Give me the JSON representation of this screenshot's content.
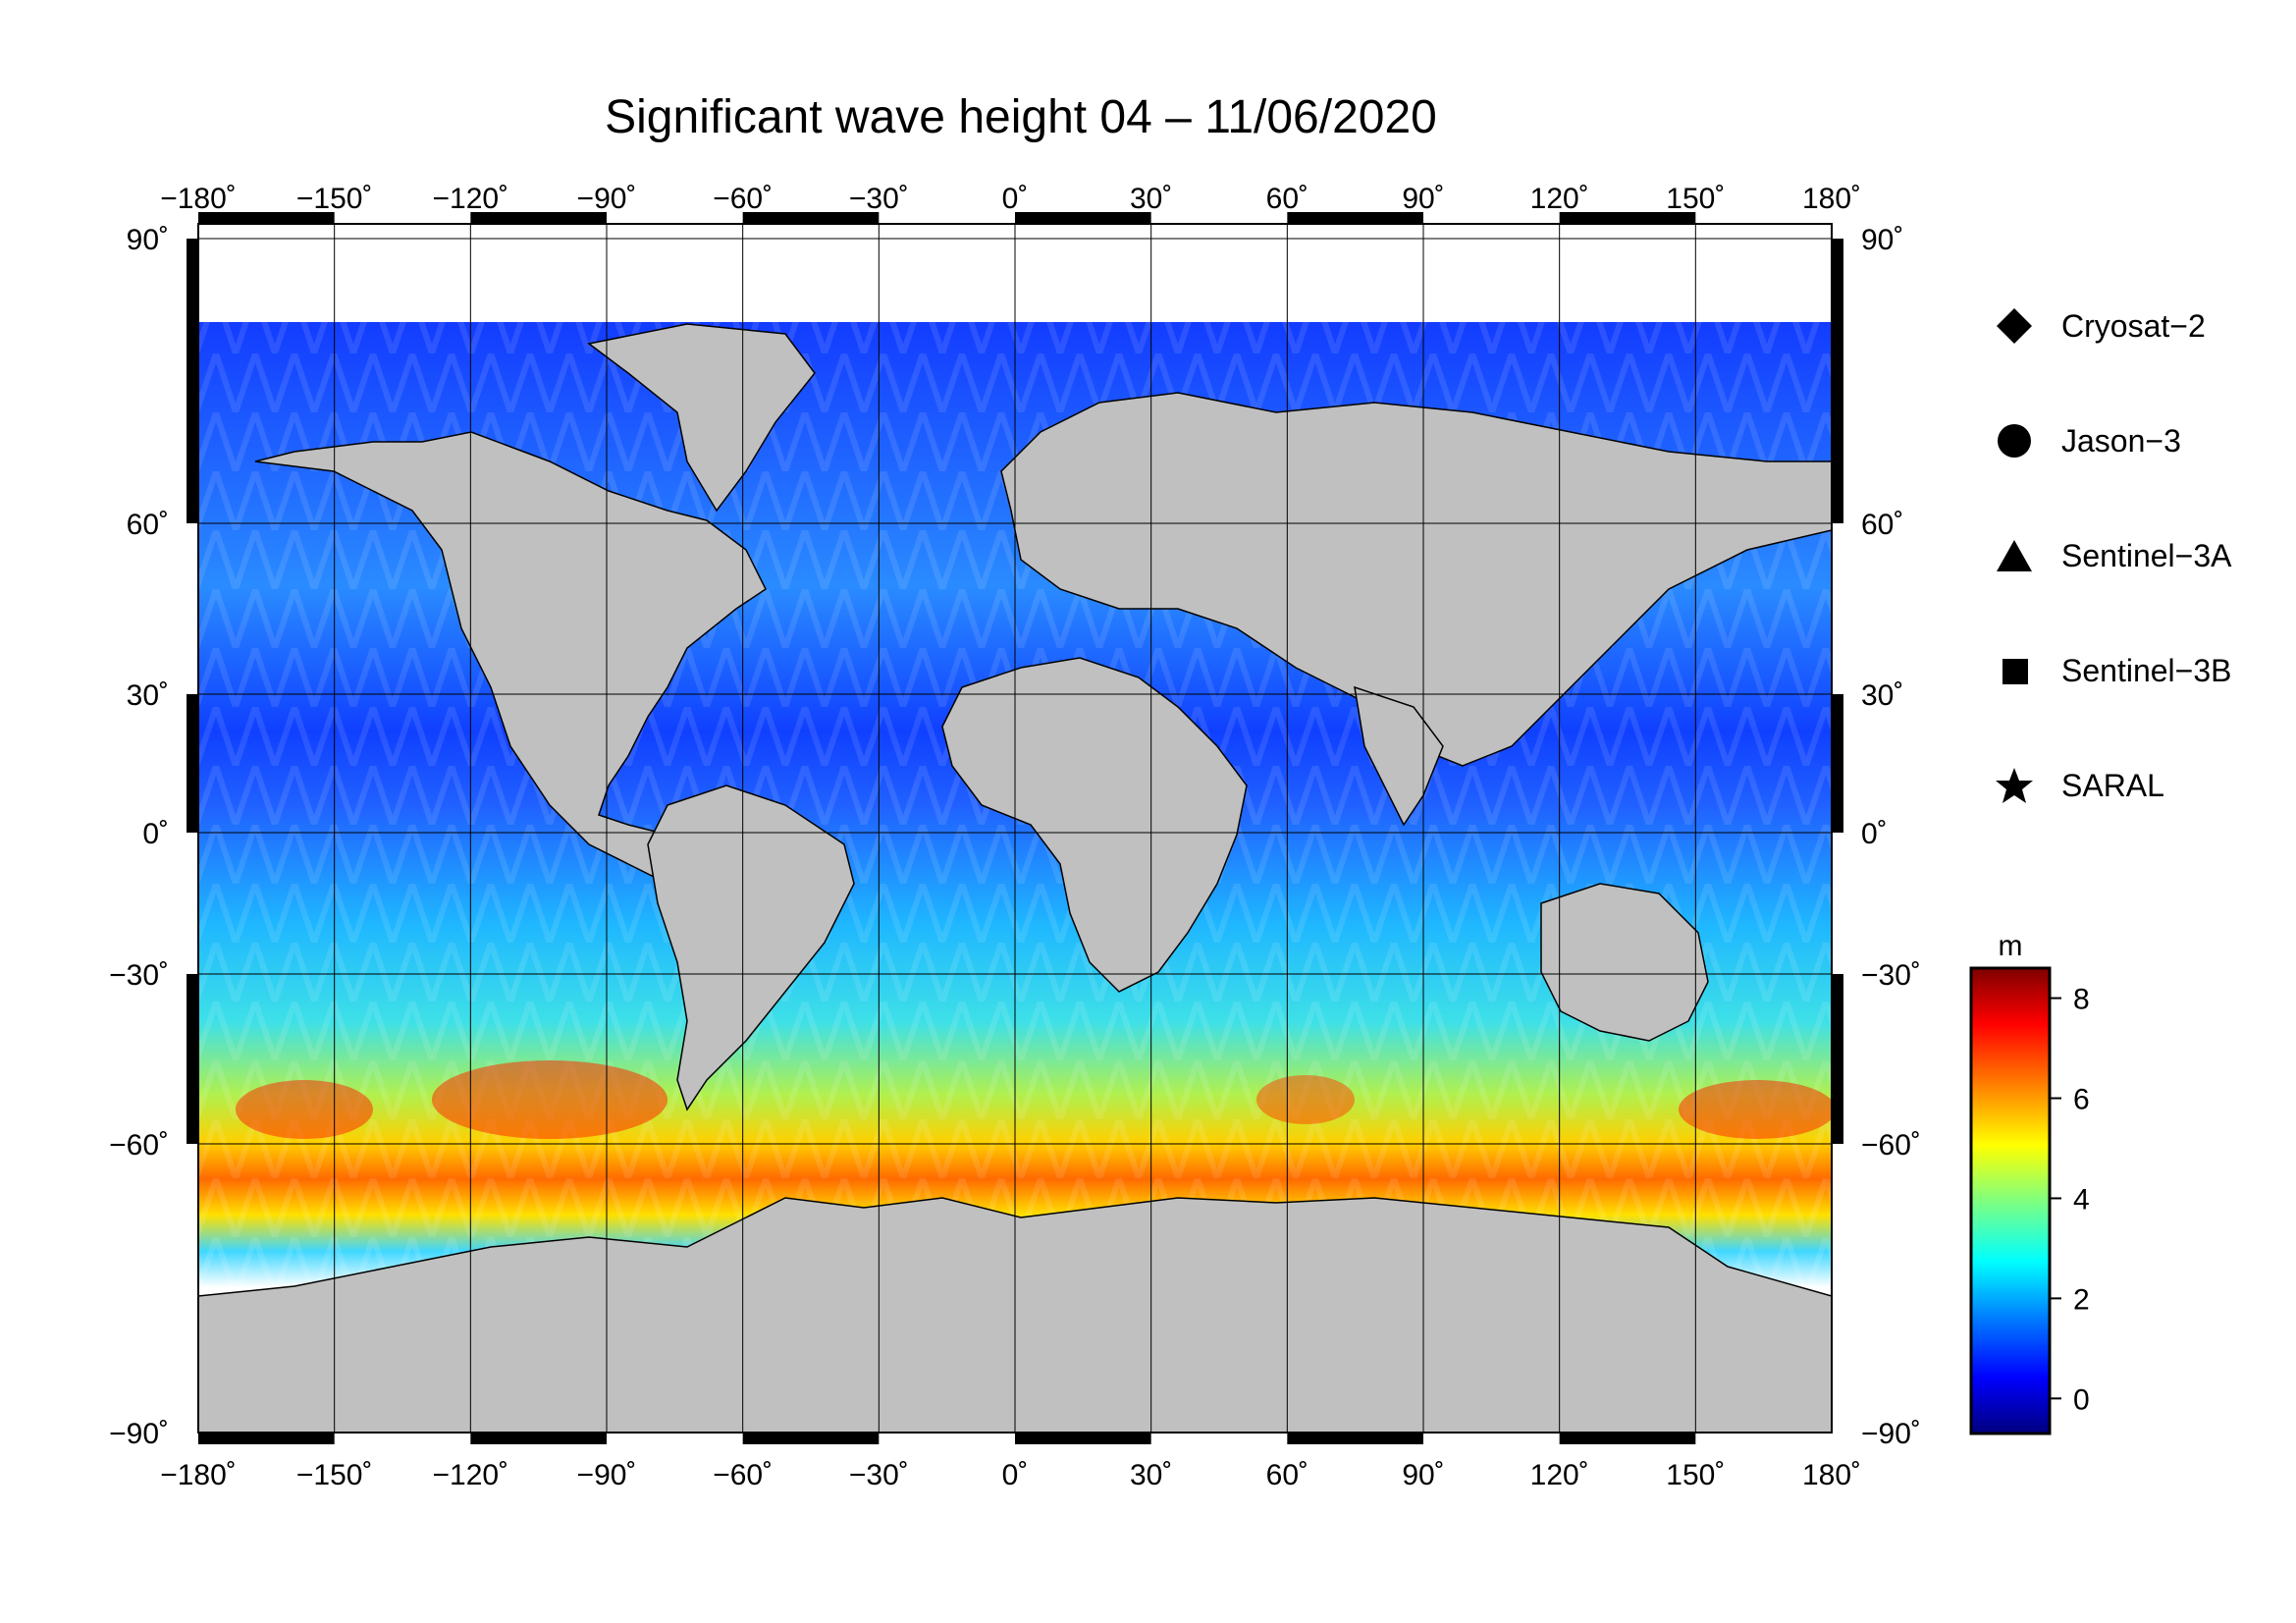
{
  "map": {
    "title": "Significant wave height 04 – 11/06/2020",
    "lon_ticks": [
      "−180˚",
      "−150˚",
      "−120˚",
      "−90˚",
      "−60˚",
      "−30˚",
      "0˚",
      "30˚",
      "60˚",
      "90˚",
      "120˚",
      "150˚",
      "180˚"
    ],
    "lat_ticks": [
      "90˚",
      "60˚",
      "30˚",
      "0˚",
      "−30˚",
      "−60˚",
      "−90˚"
    ],
    "lon_values": [
      -180,
      -150,
      -120,
      -90,
      -60,
      -30,
      0,
      30,
      60,
      90,
      120,
      150,
      180
    ],
    "lat_values": [
      90,
      60,
      30,
      0,
      -30,
      -60,
      -90
    ],
    "projection": "Mercator",
    "grid": true,
    "colors": {
      "land": "#c0c0c0",
      "ice": "#ffffff",
      "grid": "#000000"
    }
  },
  "legend": {
    "items": [
      {
        "symbol": "diamond",
        "label": "Cryosat−2"
      },
      {
        "symbol": "circle",
        "label": "Jason−3"
      },
      {
        "symbol": "triangle",
        "label": "Sentinel−3A"
      },
      {
        "symbol": "square",
        "label": "Sentinel−3B"
      },
      {
        "symbol": "star",
        "label": "SARAL"
      }
    ]
  },
  "colorbar": {
    "unit": "m",
    "ticks": [
      "8",
      "6",
      "4",
      "2",
      "0"
    ],
    "tick_values": [
      8,
      6,
      4,
      2,
      0
    ],
    "range": [
      -0.7,
      8.6
    ],
    "colormap": [
      "#00007f",
      "#0000ff",
      "#007fff",
      "#00ffff",
      "#7fff7f",
      "#ffff00",
      "#ff7f00",
      "#ff0000",
      "#7f0000"
    ]
  }
}
